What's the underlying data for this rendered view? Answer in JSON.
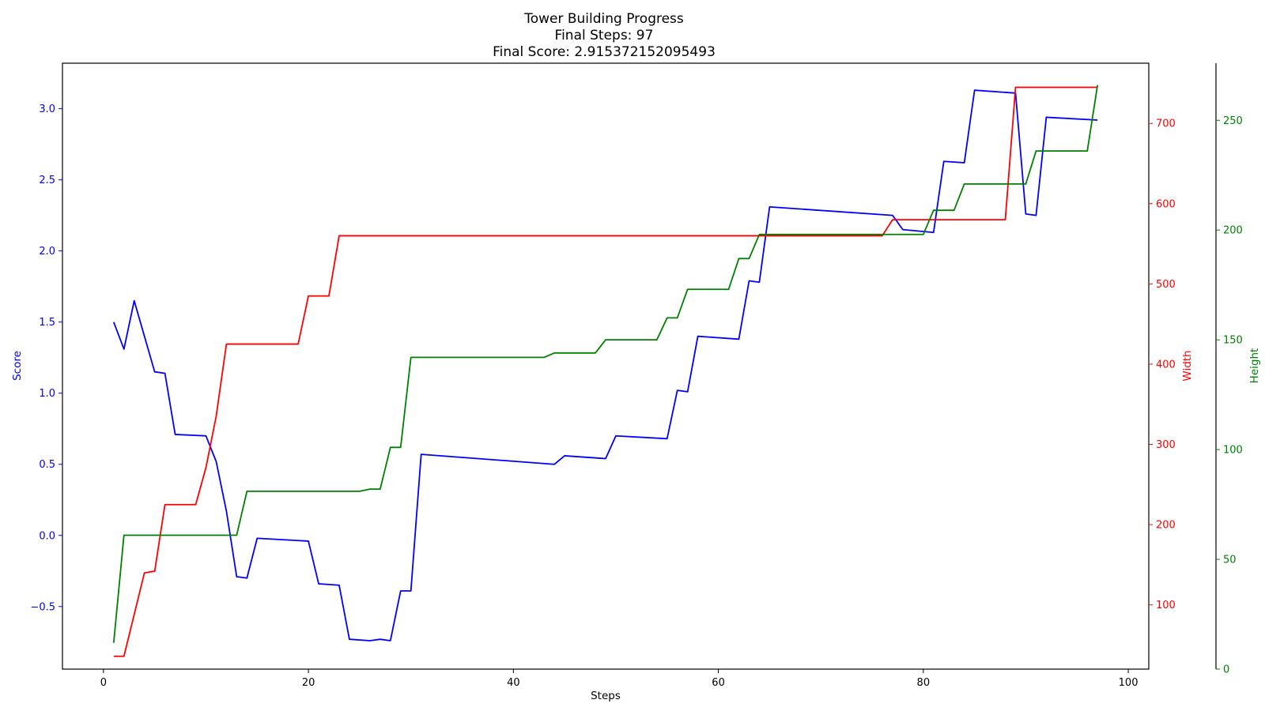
{
  "chart_data": {
    "type": "line",
    "title": [
      "Tower Building Progress",
      "Final Steps: 97",
      "Final Score: 2.915372152095493"
    ],
    "xlabel": "Steps",
    "xlim": [
      -4,
      102
    ],
    "xticks": [
      0,
      20,
      40,
      60,
      80,
      100
    ],
    "grid": false,
    "colors": {
      "score": "#0000ff",
      "width": "#ff0000",
      "height": "#008000",
      "axes": "#000000"
    },
    "axes": {
      "score": {
        "label": "Score",
        "ylim": [
          -0.94,
          3.32
        ],
        "ticks": [
          -0.5,
          0.0,
          0.5,
          1.0,
          1.5,
          2.0,
          2.5,
          3.0
        ],
        "tick_labels": [
          "−0.5",
          "0.0",
          "0.5",
          "1.0",
          "1.5",
          "2.0",
          "2.5",
          "3.0"
        ]
      },
      "width": {
        "label": "Width",
        "ylim": [
          20,
          775
        ],
        "ticks": [
          100,
          200,
          300,
          400,
          500,
          600,
          700
        ]
      },
      "height": {
        "label": "Height",
        "ylim": [
          0,
          276
        ],
        "ticks": [
          0,
          50,
          100,
          150,
          200,
          250
        ]
      }
    },
    "series": [
      {
        "key": "score",
        "x": [
          1,
          2,
          3,
          5,
          6,
          7,
          10,
          11,
          12,
          13,
          14,
          15,
          20,
          21,
          23,
          24,
          26,
          27,
          28,
          29,
          30,
          31,
          44,
          45,
          49,
          50,
          55,
          56,
          57,
          58,
          62,
          63,
          64,
          65,
          77,
          78,
          81,
          82,
          84,
          85,
          89,
          90,
          91,
          92,
          97
        ],
        "y": [
          1.5,
          1.31,
          1.65,
          1.15,
          1.14,
          0.71,
          0.7,
          0.52,
          0.17,
          -0.29,
          -0.3,
          -0.02,
          -0.04,
          -0.34,
          -0.35,
          -0.73,
          -0.74,
          -0.73,
          -0.74,
          -0.39,
          -0.39,
          0.57,
          0.5,
          0.56,
          0.54,
          0.7,
          0.68,
          1.02,
          1.01,
          1.4,
          1.38,
          1.79,
          1.78,
          2.31,
          2.25,
          2.15,
          2.13,
          2.63,
          2.62,
          3.13,
          3.11,
          2.26,
          2.25,
          2.94,
          2.92
        ]
      },
      {
        "key": "width",
        "x": [
          1,
          2,
          4,
          5,
          6,
          9,
          10,
          11,
          12,
          19,
          20,
          22,
          23,
          76,
          77,
          88,
          89,
          97
        ],
        "y": [
          36,
          36,
          140,
          142,
          225,
          225,
          271,
          335,
          425,
          425,
          485,
          485,
          560,
          560,
          580,
          580,
          745,
          745
        ]
      },
      {
        "key": "height",
        "x": [
          1,
          2,
          13,
          14,
          25,
          26,
          27,
          28,
          29,
          30,
          43,
          44,
          48,
          49,
          54,
          55,
          56,
          57,
          61,
          62,
          63,
          64,
          80,
          81,
          83,
          84,
          90,
          91,
          96,
          97
        ],
        "y": [
          12,
          61,
          61,
          81,
          81,
          82,
          82,
          101,
          101,
          142,
          142,
          144,
          144,
          150,
          150,
          160,
          160,
          173,
          173,
          187,
          187,
          198,
          198,
          209,
          209,
          221,
          221,
          236,
          236,
          266
        ]
      }
    ]
  }
}
